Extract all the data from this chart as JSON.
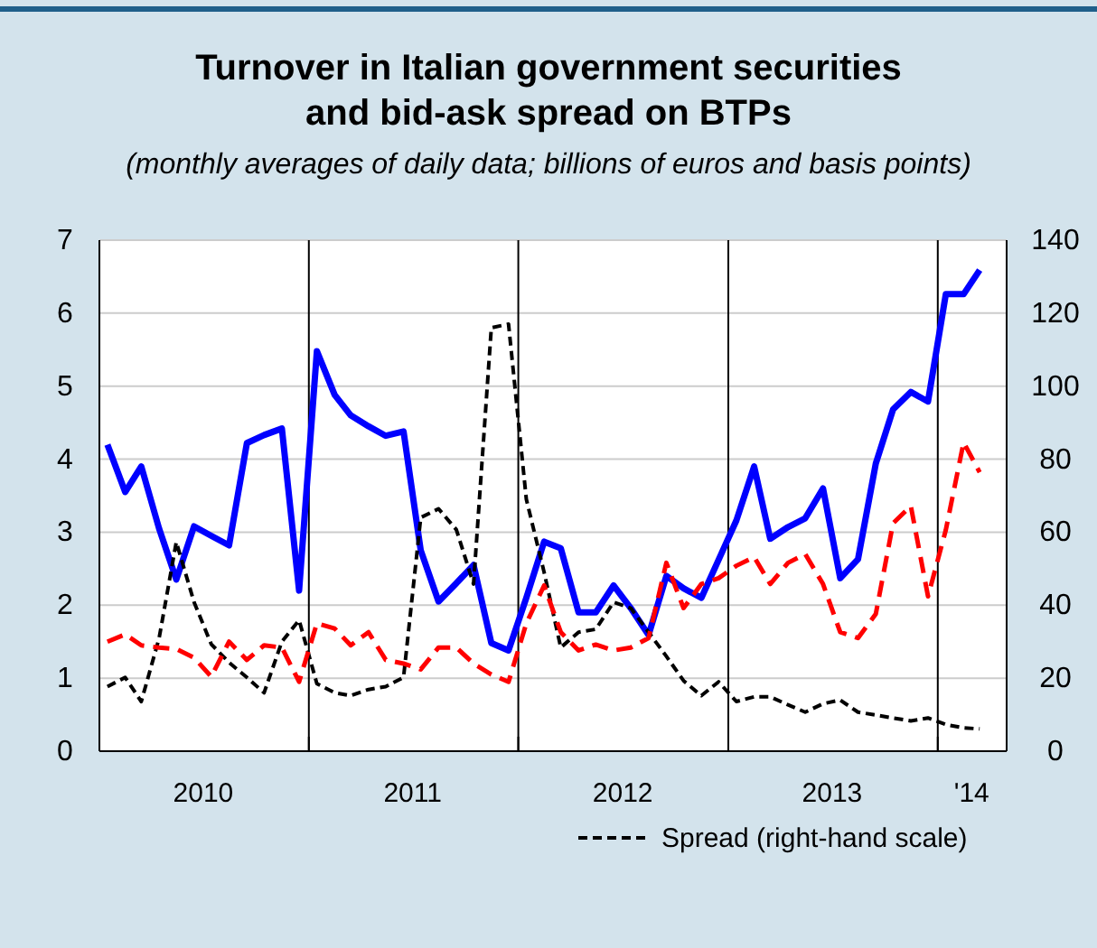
{
  "chart_data": {
    "type": "line",
    "title": "Turnover in Italian government securities\nand bid-ask spread on BTPs",
    "subtitle": "(monthly averages of daily data; billions of euros and basis points)",
    "x": [
      "2010-01-15",
      "2010-02-15",
      "2010-03-15",
      "2010-04-15",
      "2010-05-15",
      "2010-06-15",
      "2010-07-15",
      "2010-08-15",
      "2010-09-15",
      "2010-10-15",
      "2010-11-15",
      "2010-12-15",
      "2011-01-15",
      "2011-02-15",
      "2011-03-15",
      "2011-04-15",
      "2011-05-15",
      "2011-06-15",
      "2011-07-15",
      "2011-08-15",
      "2011-09-15",
      "2011-10-15",
      "2011-11-15",
      "2011-12-15",
      "2012-01-15",
      "2012-02-15",
      "2012-03-15",
      "2012-04-15",
      "2012-05-15",
      "2012-06-15",
      "2012-07-15",
      "2012-08-15",
      "2012-09-15",
      "2012-10-15",
      "2012-11-15",
      "2012-12-15",
      "2013-01-15",
      "2013-02-15",
      "2013-03-15",
      "2013-04-15",
      "2013-05-15",
      "2013-06-15",
      "2013-07-15",
      "2013-08-15",
      "2013-09-15",
      "2013-10-15",
      "2013-11-15",
      "2013-12-15",
      "2014-01-15",
      "2014-02-15",
      "2014-03-15"
    ],
    "series": [
      {
        "color": "#0000ff",
        "line_style": "solid",
        "values": [
          4.2,
          3.55,
          3.9,
          3.05,
          2.35,
          3.08,
          2.95,
          2.82,
          4.22,
          4.33,
          4.42,
          2.2,
          5.48,
          4.88,
          4.6,
          4.45,
          4.32,
          4.38,
          2.75,
          2.05,
          2.3,
          2.55,
          1.48,
          1.38,
          2.1,
          2.87,
          2.78,
          1.9,
          1.9,
          2.27,
          1.96,
          1.59,
          2.4,
          2.23,
          2.1,
          2.62,
          3.16,
          3.9,
          2.91,
          3.07,
          3.19,
          3.6,
          2.37,
          2.63,
          3.94,
          4.68,
          4.92,
          4.79,
          6.26,
          6.26,
          6.59
        ]
      },
      {
        "name": "Spread (right-hand scale)",
        "color": "#000000",
        "line_style": "dashed",
        "axis": "y2",
        "values": [
          17.7,
          20.2,
          13.6,
          30.9,
          57.3,
          40.8,
          29.3,
          24.3,
          20.2,
          16,
          30,
          35.9,
          18.5,
          16,
          15.2,
          16.9,
          17.7,
          20.2,
          64,
          66.4,
          60.7,
          45.8,
          116,
          117,
          69,
          49,
          28.4,
          32.6,
          33.4,
          40.8,
          39.2,
          32.6,
          26,
          19.3,
          15.2,
          19,
          13.6,
          14.9,
          14.9,
          12.7,
          10.7,
          13,
          14,
          10.7,
          9.9,
          9.1,
          8.3,
          9.1,
          7.3,
          6.4,
          6.1
        ]
      },
      {
        "color": "#ff0000",
        "line_style": "dashed",
        "values": [
          1.5,
          1.6,
          1.45,
          1.42,
          1.4,
          1.28,
          1.02,
          1.5,
          1.25,
          1.45,
          1.42,
          0.95,
          1.75,
          1.68,
          1.45,
          1.63,
          1.25,
          1.2,
          1.12,
          1.42,
          1.42,
          1.2,
          1.05,
          0.95,
          1.75,
          2.27,
          1.63,
          1.38,
          1.46,
          1.38,
          1.42,
          1.55,
          2.58,
          1.96,
          2.29,
          2.37,
          2.54,
          2.66,
          2.29,
          2.58,
          2.7,
          2.29,
          1.63,
          1.55,
          1.88,
          3.12,
          3.36,
          2.12,
          3.03,
          4.23,
          3.82
        ]
      }
    ],
    "xlim": [
      "2010-01",
      "2014-05"
    ],
    "xticks": [
      {
        "value": "2010-01",
        "label": null
      },
      {
        "value": "2010-07",
        "label": "2010"
      },
      {
        "value": "2011-01",
        "label": null
      },
      {
        "value": "2011-07",
        "label": "2011"
      },
      {
        "value": "2012-01",
        "label": null
      },
      {
        "value": "2012-07",
        "label": "2012"
      },
      {
        "value": "2013-01",
        "label": null
      },
      {
        "value": "2013-07",
        "label": "2013"
      },
      {
        "value": "2014-01",
        "label": null
      },
      {
        "value": "2014-03",
        "label": "'14"
      }
    ],
    "ylim": [
      0,
      7
    ],
    "yticks": [
      0,
      1,
      2,
      3,
      4,
      5,
      6,
      7
    ],
    "y2lim": [
      0,
      140
    ],
    "y2ticks": [
      0,
      20,
      40,
      60,
      80,
      100,
      120,
      140
    ],
    "ref_lines": [
      {
        "axis": "x",
        "value": "2011-01",
        "color": "#000000"
      },
      {
        "axis": "x",
        "value": "2012-01",
        "color": "#000000"
      },
      {
        "axis": "x",
        "value": "2013-01",
        "color": "#000000"
      },
      {
        "axis": "x",
        "value": "2014-01",
        "color": "#000000"
      }
    ],
    "grid": "y",
    "legend": "bottom",
    "marker": "none"
  }
}
